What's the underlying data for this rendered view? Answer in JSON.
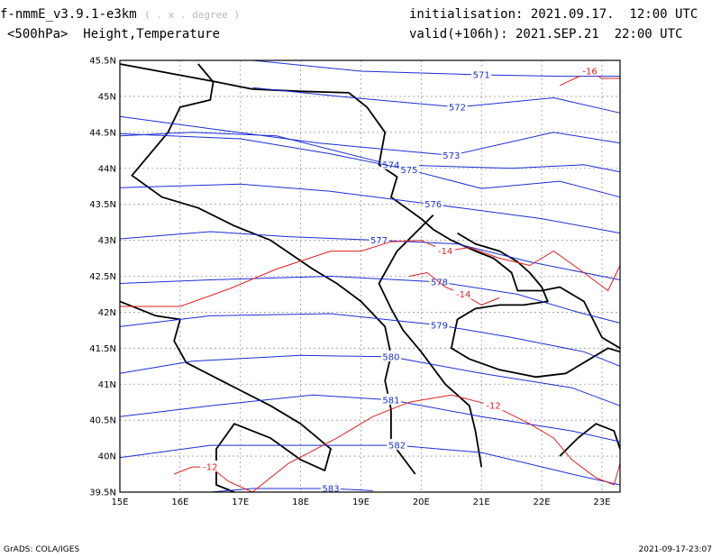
{
  "header": {
    "model": "f-nmmE_v3.9.1-e3km",
    "units": "( . x . degree )",
    "level": "<500hPa>  Height,Temperature",
    "init": "initialisation: 2021.09.17.  12:00 UTC",
    "valid": "valid(+106h): 2021.SEP.21  22:00 UTC"
  },
  "footer": {
    "left": "GrADS: COLA/IGES",
    "right": "2021-09-17-23:07"
  },
  "map": {
    "lon_range": [
      15,
      23.3
    ],
    "lat_range": [
      39.5,
      45.5
    ],
    "lon_ticks": [
      "15E",
      "16E",
      "17E",
      "18E",
      "19E",
      "20E",
      "21E",
      "22E",
      "23E"
    ],
    "lat_ticks": [
      "39.5N",
      "40N",
      "40.5N",
      "41N",
      "41.5N",
      "42N",
      "42.5N",
      "43N",
      "43.5N",
      "44N",
      "44.5N",
      "45N",
      "45.5N"
    ],
    "grid": true,
    "colors": {
      "height": "#1a2fd6",
      "temperature": "#e02020",
      "coast": "#000000",
      "grid": "#9a9a9a"
    },
    "height_contours": [
      {
        "label": "571",
        "points": [
          [
            17.2,
            45.5
          ],
          [
            19,
            45.35
          ],
          [
            21,
            45.3
          ],
          [
            22.3,
            45.28
          ],
          [
            23.3,
            45.28
          ]
        ]
      },
      {
        "label": "572",
        "points": [
          [
            17.2,
            45.12
          ],
          [
            19,
            44.97
          ],
          [
            20.6,
            44.85
          ],
          [
            22.2,
            44.98
          ],
          [
            23.3,
            44.77
          ]
        ]
      },
      {
        "label": "573",
        "points": [
          [
            15,
            44.72
          ],
          [
            16.5,
            44.55
          ],
          [
            18.3,
            44.35
          ],
          [
            20.5,
            44.18
          ],
          [
            22.2,
            44.5
          ],
          [
            23.3,
            44.35
          ]
        ]
      },
      {
        "label": "574",
        "points": [
          [
            15,
            44.45
          ],
          [
            16.2,
            44.5
          ],
          [
            17.6,
            44.45
          ],
          [
            19.5,
            44.05
          ],
          [
            21.5,
            44.0
          ],
          [
            22.7,
            44.05
          ],
          [
            23.3,
            43.95
          ]
        ]
      },
      {
        "label": "575",
        "points": [
          [
            15,
            44.48
          ],
          [
            17,
            44.41
          ],
          [
            18.5,
            44.2
          ],
          [
            19.8,
            43.98
          ],
          [
            21,
            43.72
          ],
          [
            22.3,
            43.82
          ],
          [
            23.3,
            43.6
          ]
        ]
      },
      {
        "label": "576",
        "points": [
          [
            15,
            43.73
          ],
          [
            17,
            43.78
          ],
          [
            18.5,
            43.68
          ],
          [
            20.2,
            43.5
          ],
          [
            22,
            43.3
          ],
          [
            23.3,
            43.1
          ]
        ]
      },
      {
        "label": "577",
        "points": [
          [
            15,
            43.02
          ],
          [
            16.5,
            43.12
          ],
          [
            17.8,
            43.05
          ],
          [
            19.3,
            43.0
          ],
          [
            20.6,
            42.95
          ],
          [
            21.8,
            42.7
          ],
          [
            23.3,
            42.45
          ]
        ]
      },
      {
        "label": "578",
        "points": [
          [
            15,
            42.4
          ],
          [
            16.5,
            42.45
          ],
          [
            18.5,
            42.5
          ],
          [
            20.3,
            42.42
          ],
          [
            21.6,
            42.25
          ],
          [
            22.6,
            42.0
          ],
          [
            23.3,
            41.85
          ]
        ]
      },
      {
        "label": "579",
        "points": [
          [
            15,
            41.8
          ],
          [
            16.5,
            41.95
          ],
          [
            18.5,
            41.98
          ],
          [
            20.3,
            41.82
          ],
          [
            21.5,
            41.65
          ],
          [
            22.7,
            41.45
          ],
          [
            23.3,
            41.25
          ]
        ]
      },
      {
        "label": "580",
        "points": [
          [
            15,
            41.15
          ],
          [
            16.2,
            41.32
          ],
          [
            18,
            41.4
          ],
          [
            19.5,
            41.38
          ],
          [
            21,
            41.15
          ],
          [
            22.5,
            40.95
          ],
          [
            23.3,
            40.7
          ]
        ]
      },
      {
        "label": "581",
        "points": [
          [
            15,
            40.55
          ],
          [
            16.5,
            40.7
          ],
          [
            18.2,
            40.85
          ],
          [
            19.5,
            40.78
          ],
          [
            21,
            40.55
          ],
          [
            22.5,
            40.35
          ],
          [
            23.3,
            40.2
          ]
        ]
      },
      {
        "label": "582",
        "points": [
          [
            15,
            39.98
          ],
          [
            16.5,
            40.15
          ],
          [
            18.2,
            40.15
          ],
          [
            19.6,
            40.15
          ],
          [
            21,
            40.05
          ],
          [
            22.5,
            39.75
          ],
          [
            23.3,
            39.6
          ]
        ]
      },
      {
        "label": "583",
        "points": [
          [
            16.5,
            39.5
          ],
          [
            17.2,
            39.55
          ],
          [
            18.5,
            39.55
          ],
          [
            19.2,
            39.52
          ]
        ]
      }
    ],
    "temperature_contours": [
      {
        "label": "-16",
        "points": [
          [
            22.3,
            45.15
          ],
          [
            22.55,
            45.25
          ],
          [
            22.8,
            45.35
          ],
          [
            23.0,
            45.25
          ],
          [
            23.3,
            45.25
          ]
        ]
      },
      {
        "label": "-14",
        "points": [
          [
            15,
            42.08
          ],
          [
            16,
            42.08
          ],
          [
            16.8,
            42.32
          ],
          [
            17.6,
            42.6
          ],
          [
            18.5,
            42.85
          ],
          [
            19.0,
            42.85
          ],
          [
            19.5,
            42.98
          ],
          [
            20,
            43.0
          ],
          [
            20.4,
            42.85
          ],
          [
            20.8,
            42.9
          ],
          [
            21.3,
            42.75
          ],
          [
            21.8,
            42.65
          ],
          [
            22.2,
            42.85
          ],
          [
            22.7,
            42.55
          ],
          [
            23.1,
            42.3
          ],
          [
            23.3,
            42.65
          ]
        ]
      },
      {
        "label": "-14",
        "points": [
          [
            19.8,
            42.5
          ],
          [
            20.1,
            42.55
          ],
          [
            20.4,
            42.35
          ],
          [
            20.7,
            42.25
          ],
          [
            21.0,
            42.1
          ],
          [
            21.3,
            42.2
          ]
        ]
      },
      {
        "label": "-12",
        "points": [
          [
            17.2,
            39.5
          ],
          [
            17.8,
            39.9
          ],
          [
            18.6,
            40.25
          ],
          [
            19.2,
            40.55
          ],
          [
            19.8,
            40.75
          ],
          [
            20.5,
            40.85
          ],
          [
            21.2,
            40.7
          ],
          [
            21.8,
            40.45
          ],
          [
            22.2,
            40.25
          ],
          [
            22.5,
            39.95
          ],
          [
            22.9,
            39.7
          ],
          [
            23.2,
            39.6
          ],
          [
            23.3,
            39.9
          ]
        ]
      },
      {
        "label": "-12",
        "points": [
          [
            15.9,
            39.75
          ],
          [
            16.2,
            39.85
          ],
          [
            16.5,
            39.85
          ],
          [
            16.8,
            39.65
          ],
          [
            17.2,
            39.5
          ]
        ]
      }
    ],
    "coastlines": [
      [
        [
          15,
          45.45
        ],
        [
          16.6,
          45.2
        ],
        [
          17.2,
          45.1
        ],
        [
          18,
          45.07
        ],
        [
          18.8,
          45.05
        ],
        [
          19.1,
          44.85
        ],
        [
          19.4,
          44.5
        ],
        [
          19.3,
          44.05
        ],
        [
          19.6,
          43.88
        ],
        [
          19.5,
          43.6
        ],
        [
          20.0,
          43.3
        ],
        [
          20.2,
          43.15
        ],
        [
          20.5,
          43.0
        ],
        [
          20.9,
          42.85
        ],
        [
          21.2,
          42.75
        ],
        [
          21.5,
          42.55
        ],
        [
          21.6,
          42.3
        ],
        [
          22.0,
          42.3
        ],
        [
          22.3,
          42.35
        ],
        [
          22.7,
          42.15
        ],
        [
          23.0,
          41.65
        ],
        [
          23.3,
          41.5
        ]
      ],
      [
        [
          16.3,
          45.45
        ],
        [
          16.55,
          45.2
        ],
        [
          16.5,
          44.95
        ],
        [
          16.0,
          44.85
        ],
        [
          15.8,
          44.5
        ],
        [
          15.5,
          44.2
        ],
        [
          15.2,
          43.9
        ],
        [
          15.7,
          43.6
        ],
        [
          16.3,
          43.45
        ],
        [
          16.9,
          43.2
        ],
        [
          17.5,
          43.0
        ],
        [
          18.2,
          42.6
        ],
        [
          18.6,
          42.4
        ],
        [
          19.0,
          42.15
        ],
        [
          19.4,
          41.8
        ],
        [
          19.5,
          41.4
        ],
        [
          19.4,
          41.05
        ],
        [
          19.5,
          40.65
        ],
        [
          19.5,
          40.2
        ],
        [
          19.9,
          39.75
        ]
      ],
      [
        [
          20.2,
          43.35
        ],
        [
          19.9,
          43.1
        ],
        [
          19.6,
          42.85
        ],
        [
          19.3,
          42.4
        ],
        [
          19.5,
          42.05
        ],
        [
          19.7,
          41.75
        ],
        [
          20.0,
          41.45
        ],
        [
          20.4,
          41.0
        ],
        [
          20.8,
          40.7
        ],
        [
          20.9,
          40.35
        ],
        [
          21.0,
          39.85
        ]
      ],
      [
        [
          20.6,
          43.1
        ],
        [
          20.9,
          42.95
        ],
        [
          21.3,
          42.85
        ],
        [
          21.6,
          42.7
        ],
        [
          21.8,
          42.55
        ],
        [
          22.0,
          42.35
        ],
        [
          22.1,
          42.15
        ],
        [
          21.7,
          42.1
        ],
        [
          21.3,
          42.1
        ],
        [
          20.9,
          42.05
        ],
        [
          20.6,
          41.9
        ],
        [
          20.5,
          41.5
        ],
        [
          20.8,
          41.35
        ],
        [
          21.3,
          41.2
        ],
        [
          21.9,
          41.1
        ],
        [
          22.4,
          41.15
        ],
        [
          22.8,
          41.35
        ],
        [
          23.1,
          41.5
        ],
        [
          23.3,
          41.45
        ]
      ],
      [
        [
          15,
          42.15
        ],
        [
          15.6,
          41.95
        ],
        [
          16.0,
          41.9
        ],
        [
          15.9,
          41.6
        ],
        [
          16.1,
          41.3
        ],
        [
          16.8,
          41.0
        ],
        [
          17.5,
          40.7
        ],
        [
          18.0,
          40.45
        ],
        [
          18.5,
          40.1
        ],
        [
          18.4,
          39.8
        ],
        [
          18.0,
          39.95
        ],
        [
          17.5,
          40.25
        ],
        [
          16.9,
          40.45
        ],
        [
          16.6,
          40.1
        ],
        [
          16.6,
          39.6
        ],
        [
          16.9,
          39.5
        ]
      ],
      [
        [
          22.3,
          40.0
        ],
        [
          22.6,
          40.25
        ],
        [
          22.9,
          40.45
        ],
        [
          23.2,
          40.35
        ],
        [
          23.3,
          40.1
        ]
      ]
    ]
  }
}
